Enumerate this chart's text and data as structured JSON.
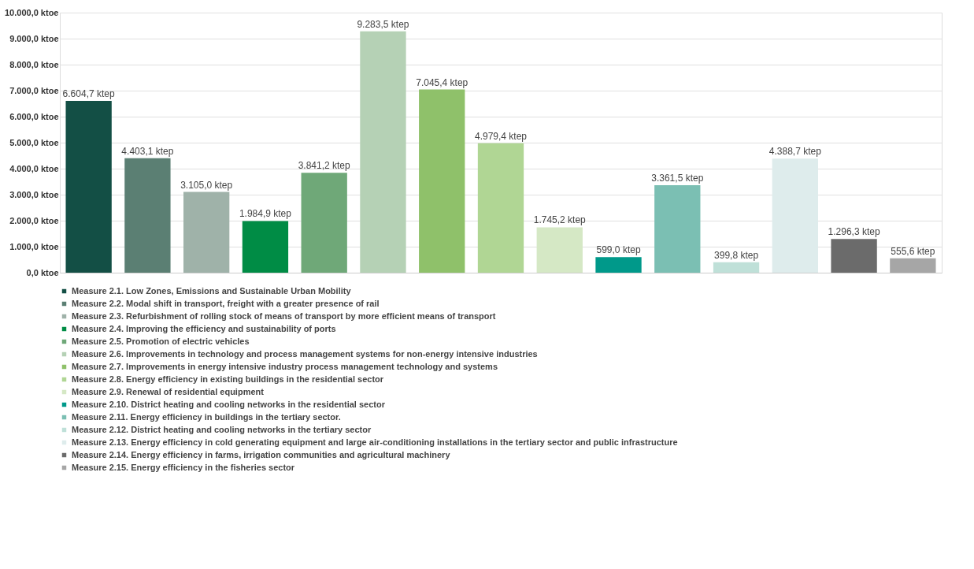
{
  "chart_data": {
    "type": "bar",
    "categories": [
      null,
      null,
      null,
      null,
      null,
      null,
      null,
      null,
      null,
      null,
      null,
      null,
      null,
      null,
      null
    ],
    "series": [
      {
        "name": "Measure 2.1. Low Zones, Emissions and Sustainable Urban Mobility",
        "color": "#134f45",
        "values": [
          6604.7,
          null,
          null,
          null,
          null,
          null,
          null,
          null,
          null,
          null,
          null,
          null,
          null,
          null,
          null
        ],
        "value_labels": [
          "6.604,7 ktep",
          null,
          null,
          null,
          null,
          null,
          null,
          null,
          null,
          null,
          null,
          null,
          null,
          null,
          null
        ]
      },
      {
        "name": "Measure 2.2. Modal shift in transport, freight with a greater presence of rail",
        "color": "#5b7f73",
        "values": [
          null,
          4403.1,
          null,
          null,
          null,
          null,
          null,
          null,
          null,
          null,
          null,
          null,
          null,
          null,
          null
        ],
        "value_labels": [
          null,
          "4.403,1 ktep",
          null,
          null,
          null,
          null,
          null,
          null,
          null,
          null,
          null,
          null,
          null,
          null,
          null
        ]
      },
      {
        "name": "Measure 2.3. Refurbishment of rolling stock of means of transport by more efficient means of transport",
        "color": "#9fb2a9",
        "values": [
          null,
          null,
          3105.0,
          null,
          null,
          null,
          null,
          null,
          null,
          null,
          null,
          null,
          null,
          null,
          null
        ],
        "value_labels": [
          null,
          null,
          "3.105,0 ktep",
          null,
          null,
          null,
          null,
          null,
          null,
          null,
          null,
          null,
          null,
          null,
          null
        ]
      },
      {
        "name": "Measure 2.4. Improving the efficiency and sustainability of ports",
        "color": "#008c45",
        "values": [
          null,
          null,
          null,
          1984.9,
          null,
          null,
          null,
          null,
          null,
          null,
          null,
          null,
          null,
          null,
          null
        ],
        "value_labels": [
          null,
          null,
          null,
          "1.984,9 ktep",
          null,
          null,
          null,
          null,
          null,
          null,
          null,
          null,
          null,
          null,
          null
        ]
      },
      {
        "name": "Measure 2.5. Promotion of electric vehicles",
        "color": "#6fa878",
        "values": [
          null,
          null,
          null,
          null,
          3841.2,
          null,
          null,
          null,
          null,
          null,
          null,
          null,
          null,
          null,
          null
        ],
        "value_labels": [
          null,
          null,
          null,
          null,
          "3.841,2 ktep",
          null,
          null,
          null,
          null,
          null,
          null,
          null,
          null,
          null,
          null
        ]
      },
      {
        "name": "Measure 2.6. Improvements in technology and process management systems for non-energy intensive industries",
        "color": "#b5d1b5",
        "values": [
          null,
          null,
          null,
          null,
          null,
          9283.5,
          null,
          null,
          null,
          null,
          null,
          null,
          null,
          null,
          null
        ],
        "value_labels": [
          null,
          null,
          null,
          null,
          null,
          "9.283,5 ktep",
          null,
          null,
          null,
          null,
          null,
          null,
          null,
          null,
          null
        ]
      },
      {
        "name": "Measure 2.7. Improvements in energy intensive industry process management technology and systems",
        "color": "#8fc16a",
        "values": [
          null,
          null,
          null,
          null,
          null,
          null,
          7045.4,
          null,
          null,
          null,
          null,
          null,
          null,
          null,
          null
        ],
        "value_labels": [
          null,
          null,
          null,
          null,
          null,
          null,
          "7.045,4 ktep",
          null,
          null,
          null,
          null,
          null,
          null,
          null,
          null
        ]
      },
      {
        "name": "Measure 2.8. Energy efficiency in existing buildings in the residential sector",
        "color": "#b0d694",
        "values": [
          null,
          null,
          null,
          null,
          null,
          null,
          null,
          4979.4,
          null,
          null,
          null,
          null,
          null,
          null,
          null
        ],
        "value_labels": [
          null,
          null,
          null,
          null,
          null,
          null,
          null,
          "4.979,4 ktep",
          null,
          null,
          null,
          null,
          null,
          null,
          null
        ]
      },
      {
        "name": "Measure 2.9. Renewal of residential equipment",
        "color": "#d5e8c5",
        "values": [
          null,
          null,
          null,
          null,
          null,
          null,
          null,
          null,
          1745.2,
          null,
          null,
          null,
          null,
          null,
          null
        ],
        "value_labels": [
          null,
          null,
          null,
          null,
          null,
          null,
          null,
          null,
          "1.745,2 ktep",
          null,
          null,
          null,
          null,
          null,
          null
        ]
      },
      {
        "name": "Measure 2.10. District heating and cooling networks in the residential sector",
        "color": "#00998a",
        "values": [
          null,
          null,
          null,
          null,
          null,
          null,
          null,
          null,
          null,
          599.0,
          null,
          null,
          null,
          null,
          null
        ],
        "value_labels": [
          null,
          null,
          null,
          null,
          null,
          null,
          null,
          null,
          null,
          "599,0 ktep",
          null,
          null,
          null,
          null,
          null
        ]
      },
      {
        "name": "Measure 2.11. Energy efficiency in buildings in the tertiary sector.",
        "color": "#7bbfb3",
        "values": [
          null,
          null,
          null,
          null,
          null,
          null,
          null,
          null,
          null,
          null,
          3361.5,
          null,
          null,
          null,
          null
        ],
        "value_labels": [
          null,
          null,
          null,
          null,
          null,
          null,
          null,
          null,
          null,
          null,
          "3.361,5 ktep",
          null,
          null,
          null,
          null
        ]
      },
      {
        "name": "Measure 2.12. District heating and cooling networks in the tertiary sector",
        "color": "#bfe0d8",
        "values": [
          null,
          null,
          null,
          null,
          null,
          null,
          null,
          null,
          null,
          null,
          null,
          399.8,
          null,
          null,
          null
        ],
        "value_labels": [
          null,
          null,
          null,
          null,
          null,
          null,
          null,
          null,
          null,
          null,
          null,
          "399,8 ktep",
          null,
          null,
          null
        ]
      },
      {
        "name": "Measure 2.13. Energy efficiency in cold generating equipment and large air-conditioning installations in the tertiary sector and public infrastructure",
        "color": "#deecec",
        "values": [
          null,
          null,
          null,
          null,
          null,
          null,
          null,
          null,
          null,
          null,
          null,
          null,
          4388.7,
          null,
          null
        ],
        "value_labels": [
          null,
          null,
          null,
          null,
          null,
          null,
          null,
          null,
          null,
          null,
          null,
          null,
          "4.388,7 ktep",
          null,
          null
        ]
      },
      {
        "name": "Measure 2.14. Energy efficiency in farms, irrigation communities and agricultural machinery",
        "color": "#6b6b6b",
        "values": [
          null,
          null,
          null,
          null,
          null,
          null,
          null,
          null,
          null,
          null,
          null,
          null,
          null,
          1296.3,
          null
        ],
        "value_labels": [
          null,
          null,
          null,
          null,
          null,
          null,
          null,
          null,
          null,
          null,
          null,
          null,
          null,
          "1.296,3 ktep",
          null
        ]
      },
      {
        "name": "Measure 2.15. Energy efficiency in the fisheries sector",
        "color": "#a6a6a6",
        "values": [
          null,
          null,
          null,
          null,
          null,
          null,
          null,
          null,
          null,
          null,
          null,
          null,
          null,
          null,
          555.6
        ],
        "value_labels": [
          null,
          null,
          null,
          null,
          null,
          null,
          null,
          null,
          null,
          null,
          null,
          null,
          null,
          null,
          "555,6 ktep"
        ]
      }
    ],
    "ylim": [
      0,
      10000
    ],
    "yticks": [
      {
        "value": 0,
        "label": "0,0 ktoe"
      },
      {
        "value": 1000,
        "label": "1.000,0 ktoe"
      },
      {
        "value": 2000,
        "label": "2.000,0 ktoe"
      },
      {
        "value": 3000,
        "label": "3.000,0 ktoe"
      },
      {
        "value": 4000,
        "label": "4.000,0 ktoe"
      },
      {
        "value": 5000,
        "label": "5.000,0 ktoe"
      },
      {
        "value": 6000,
        "label": "6.000,0 ktoe"
      },
      {
        "value": 7000,
        "label": "7.000,0 ktoe"
      },
      {
        "value": 8000,
        "label": "8.000,0 ktoe"
      },
      {
        "value": 9000,
        "label": "9.000,0 ktoe"
      },
      {
        "value": 10000,
        "label": "10.000,0 ktoe"
      }
    ],
    "grid": "y",
    "legend": "bottom",
    "tick_labels": "y"
  }
}
